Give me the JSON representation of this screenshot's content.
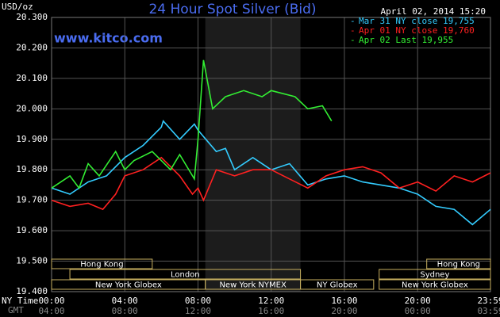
{
  "chart_data": {
    "type": "line",
    "title": "24 Hour Spot Silver (Bid)",
    "y_label": "USD/oz",
    "watermark": "www.kitco.com",
    "timestamp": "April 02, 2014 15:20",
    "x_label": "NY Time",
    "x2_label": "GMT",
    "xlim": [
      0,
      23.983
    ],
    "ylim": [
      19.4,
      20.3
    ],
    "yticks": [
      {
        "value": 19.4,
        "label": "19.400"
      },
      {
        "value": 19.5,
        "label": "19.500"
      },
      {
        "value": 19.6,
        "label": "19.600"
      },
      {
        "value": 19.7,
        "label": "19.700"
      },
      {
        "value": 19.8,
        "label": "19.800"
      },
      {
        "value": 19.9,
        "label": "19.900"
      },
      {
        "value": 20.0,
        "label": "20.000"
      },
      {
        "value": 20.1,
        "label": "20.100"
      },
      {
        "value": 20.2,
        "label": "20.200"
      },
      {
        "value": 20.3,
        "label": "20.300"
      }
    ],
    "xticks": [
      {
        "value": 0,
        "label": "00:00"
      },
      {
        "value": 4,
        "label": "04:00"
      },
      {
        "value": 8,
        "label": "08:00"
      },
      {
        "value": 12,
        "label": "12:00"
      },
      {
        "value": 16,
        "label": "16:00"
      },
      {
        "value": 20,
        "label": "20:00"
      },
      {
        "value": 23.983,
        "label": "23:59"
      }
    ],
    "gmt_ticks": [
      {
        "value": 0,
        "label": "04:00"
      },
      {
        "value": 4,
        "label": "08:00"
      },
      {
        "value": 8,
        "label": "12:00"
      },
      {
        "value": 12,
        "label": "16:00"
      },
      {
        "value": 16,
        "label": "20:00"
      },
      {
        "value": 20,
        "label": "00:00"
      },
      {
        "value": 23.983,
        "label": "03:59"
      }
    ],
    "grid": true,
    "sessions": [
      [
        {
          "label": "Hong Kong",
          "start": 0,
          "end": 5.5
        },
        {
          "label": "Hong Kong",
          "start": 20.5,
          "end": 24
        }
      ],
      [
        {
          "label": "London",
          "start": 1,
          "end": 13.6
        },
        {
          "label": "Sydney",
          "start": 17.9,
          "end": 24
        }
      ],
      [
        {
          "label": "New York Globex",
          "start": 0,
          "end": 8.4
        },
        {
          "label": "New York NYMEX",
          "start": 8.4,
          "end": 13.6
        },
        {
          "label": "NY Globex",
          "start": 13.6,
          "end": 17.6
        },
        {
          "label": "New York Globex",
          "start": 17.9,
          "end": 24
        }
      ]
    ],
    "series": [
      {
        "name": "Mar 31 NY close 19,755",
        "color": "#33ccff",
        "x": [
          0,
          1,
          2,
          3,
          4,
          5,
          6,
          6.1,
          7,
          7.8,
          8,
          9,
          9.5,
          10,
          11,
          12,
          13,
          14,
          15,
          16,
          17,
          18,
          19,
          20,
          21,
          22,
          23,
          23.983
        ],
        "values": [
          19.74,
          19.72,
          19.76,
          19.78,
          19.84,
          19.88,
          19.94,
          19.96,
          19.9,
          19.95,
          19.93,
          19.86,
          19.87,
          19.8,
          19.84,
          19.8,
          19.82,
          19.75,
          19.77,
          19.78,
          19.76,
          19.75,
          19.74,
          19.72,
          19.68,
          19.67,
          19.62,
          19.67
        ]
      },
      {
        "name": "Apr 01 NY close 19,760",
        "color": "#ff2020",
        "x": [
          0,
          1,
          2,
          2.8,
          3.5,
          4,
          5,
          6,
          7,
          7.7,
          8,
          8.3,
          9,
          10,
          11,
          12,
          13,
          14,
          15,
          16,
          17,
          18,
          19,
          20,
          21,
          22,
          23,
          23.983
        ],
        "values": [
          19.7,
          19.68,
          19.69,
          19.67,
          19.72,
          19.78,
          19.8,
          19.84,
          19.78,
          19.72,
          19.74,
          19.7,
          19.8,
          19.78,
          19.8,
          19.8,
          19.77,
          19.74,
          19.78,
          19.8,
          19.81,
          19.79,
          19.74,
          19.76,
          19.73,
          19.78,
          19.76,
          19.79
        ]
      },
      {
        "name": "Apr 02 Last 19,955",
        "color": "#33ee33",
        "x": [
          0,
          1,
          1.5,
          2,
          2.6,
          3.5,
          4,
          4.5,
          5.5,
          6.5,
          7,
          7.8,
          8,
          8.3,
          8.8,
          9.5,
          10.5,
          11.5,
          12,
          13.3,
          14,
          14.8,
          15.3
        ],
        "values": [
          19.74,
          19.78,
          19.74,
          19.82,
          19.78,
          19.86,
          19.8,
          19.83,
          19.86,
          19.8,
          19.85,
          19.77,
          19.9,
          20.16,
          20.0,
          20.04,
          20.06,
          20.04,
          20.06,
          20.04,
          20.0,
          20.01,
          19.96
        ]
      }
    ]
  }
}
